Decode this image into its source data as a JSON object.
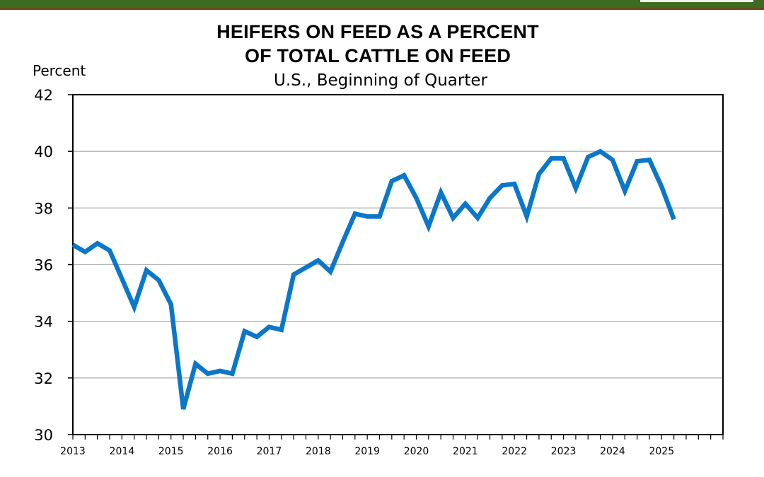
{
  "header": {
    "bar_color": "#3d6b1f",
    "border_color": "#6a4a1e"
  },
  "chart_data": {
    "type": "line",
    "title_line1": "HEIFERS ON FEED AS A PERCENT",
    "title_line2": "OF TOTAL CATTLE ON FEED",
    "subtitle": "U.S., Beginning of Quarter",
    "ylabel": "Percent",
    "xlabel": "",
    "ylim": [
      30,
      42
    ],
    "yticks": [
      30,
      32,
      34,
      36,
      38,
      40,
      42
    ],
    "xlim": [
      2013,
      2026.25
    ],
    "xticks": [
      "2013",
      "2014",
      "2015",
      "2016",
      "2017",
      "2018",
      "2019",
      "2020",
      "2021",
      "2022",
      "2023",
      "2024",
      "2025"
    ],
    "grid": true,
    "line_color": "#0b77c9",
    "series": [
      {
        "x": [
          2013.0,
          2013.25,
          2013.5,
          2013.75,
          2014.0,
          2014.25,
          2014.5,
          2014.75,
          2015.0,
          2015.25,
          2015.5,
          2015.75,
          2016.0,
          2016.25,
          2016.5,
          2016.75,
          2017.0,
          2017.25,
          2017.5,
          2017.75,
          2018.0,
          2018.25,
          2018.5,
          2018.75,
          2019.0,
          2019.25,
          2019.5,
          2019.75,
          2020.0,
          2020.25,
          2020.5,
          2020.75,
          2021.0,
          2021.25,
          2021.5,
          2021.75,
          2022.0,
          2022.25,
          2022.5,
          2022.75,
          2023.0,
          2023.25,
          2023.5,
          2023.75,
          2024.0,
          2024.25,
          2024.5,
          2024.75,
          2025.0,
          2025.25
        ],
        "values": [
          36.7,
          36.45,
          36.75,
          36.5,
          35.5,
          34.5,
          35.8,
          35.45,
          34.6,
          30.9,
          32.5,
          32.15,
          32.25,
          32.15,
          33.65,
          33.45,
          33.8,
          33.7,
          35.65,
          35.9,
          36.15,
          35.75,
          36.8,
          37.8,
          37.7,
          37.7,
          38.95,
          39.15,
          38.35,
          37.35,
          38.55,
          37.65,
          38.15,
          37.65,
          38.35,
          38.8,
          38.85,
          37.7,
          39.2,
          39.75,
          39.75,
          38.7,
          39.8,
          40.0,
          39.7,
          38.6,
          39.65,
          39.7,
          38.75,
          37.6
        ]
      }
    ]
  }
}
